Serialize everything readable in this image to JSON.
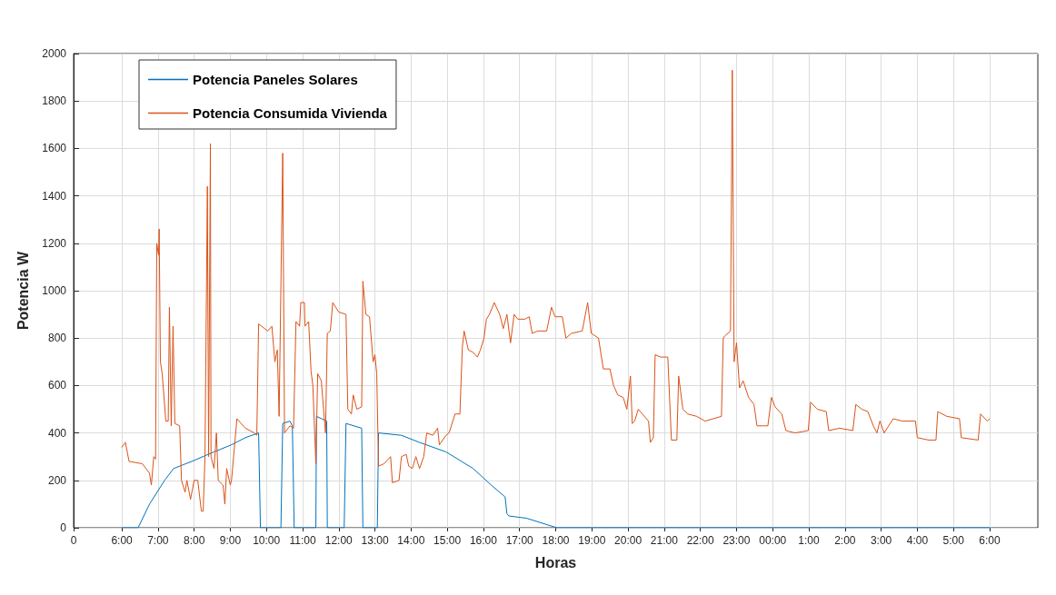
{
  "chart_data": {
    "type": "line",
    "xlabel": "Horas",
    "ylabel": "Potencia W",
    "xlim": [
      "--01-01T04:40",
      "--01-02T07:20"
    ],
    "xticks": [
      {
        "value": "--01-01T04:40",
        "label": "0"
      },
      {
        "value": "--01-01T06:00",
        "label": "6:00"
      },
      {
        "value": "--01-01T07:00",
        "label": "7:00"
      },
      {
        "value": "--01-01T08:00",
        "label": "8:00"
      },
      {
        "value": "--01-01T09:00",
        "label": "9:00"
      },
      {
        "value": "--01-01T10:00",
        "label": "10:00"
      },
      {
        "value": "--01-01T11:00",
        "label": "11:00"
      },
      {
        "value": "--01-01T12:00",
        "label": "12:00"
      },
      {
        "value": "--01-01T13:00",
        "label": "13:00"
      },
      {
        "value": "--01-01T14:00",
        "label": "14:00"
      },
      {
        "value": "--01-01T15:00",
        "label": "15:00"
      },
      {
        "value": "--01-01T16:00",
        "label": "16:00"
      },
      {
        "value": "--01-01T17:00",
        "label": "17:00"
      },
      {
        "value": "--01-01T18:00",
        "label": "18:00"
      },
      {
        "value": "--01-01T19:00",
        "label": "19:00"
      },
      {
        "value": "--01-01T20:00",
        "label": "20:00"
      },
      {
        "value": "--01-01T21:00",
        "label": "21:00"
      },
      {
        "value": "--01-01T22:00",
        "label": "22:00"
      },
      {
        "value": "--01-01T23:00",
        "label": "23:00"
      },
      {
        "value": "--01-02T00:00",
        "label": "00:00"
      },
      {
        "value": "--01-02T01:00",
        "label": "1:00"
      },
      {
        "value": "--01-02T02:00",
        "label": "2:00"
      },
      {
        "value": "--01-02T03:00",
        "label": "3:00"
      },
      {
        "value": "--01-02T04:00",
        "label": "4:00"
      },
      {
        "value": "--01-02T05:00",
        "label": "5:00"
      },
      {
        "value": "--01-02T06:00",
        "label": "6:00"
      }
    ],
    "ylim": [
      0,
      2000
    ],
    "yticks": [
      0,
      200,
      400,
      600,
      800,
      1000,
      1200,
      1400,
      1600,
      1800,
      2000
    ],
    "grid": true,
    "legend": "top left",
    "series": [
      {
        "name": "Potencia Paneles Solares",
        "color": "#0072bd",
        "x": [
          "--01-01T06:00",
          "--01-01T06:27",
          "--01-01T06:46",
          "--01-01T07:11",
          "--01-01T07:26",
          "--01-01T07:56",
          "--01-01T08:33",
          "--01-01T09:02",
          "--01-01T09:25",
          "--01-01T09:47",
          "--01-01T09:50",
          "--01-01T10:24",
          "--01-01T10:27",
          "--01-01T10:39",
          "--01-01T10:43",
          "--01-01T10:46",
          "--01-01T11:16",
          "--01-01T11:22",
          "--01-01T11:23",
          "--01-01T11:40",
          "--01-01T11:41",
          "--01-01T12:09",
          "--01-01T12:12",
          "--01-01T12:38",
          "--01-01T12:40",
          "--01-01T13:04",
          "--01-01T13:06",
          "--01-01T13:44",
          "--01-01T14:14",
          "--01-01T14:58",
          "--01-01T15:43",
          "--01-01T16:13",
          "--01-01T16:36",
          "--01-01T16:39",
          "--01-01T16:42",
          "--01-01T17:12",
          "--01-01T18:02",
          "--01-02T06:00"
        ],
        "values": [
          0,
          0,
          100,
          200,
          250,
          280,
          320,
          350,
          380,
          400,
          0,
          0,
          440,
          450,
          430,
          0,
          0,
          0,
          470,
          450,
          0,
          0,
          440,
          420,
          0,
          0,
          400,
          390,
          360,
          320,
          250,
          180,
          130,
          60,
          50,
          40,
          0,
          0
        ]
      },
      {
        "name": "Potencia Consumida Vivienda",
        "color": "#d95319",
        "x": [
          "--01-01T06:00",
          "--01-01T06:06",
          "--01-01T06:12",
          "--01-01T06:34",
          "--01-01T06:46",
          "--01-01T06:49",
          "--01-01T06:53",
          "--01-01T06:56",
          "--01-01T06:58",
          "--01-01T07:01",
          "--01-01T07:02",
          "--01-01T07:04",
          "--01-01T07:07",
          "--01-01T07:13",
          "--01-01T07:17",
          "--01-01T07:19",
          "--01-01T07:22",
          "--01-01T07:25",
          "--01-01T07:28",
          "--01-01T07:36",
          "--01-01T07:39",
          "--01-01T07:45",
          "--01-01T07:48",
          "--01-01T07:54",
          "--01-01T08:00",
          "--01-01T08:06",
          "--01-01T08:12",
          "--01-01T08:15",
          "--01-01T08:18",
          "--01-01T08:22",
          "--01-01T08:24",
          "--01-01T08:27",
          "--01-01T08:28",
          "--01-01T08:33",
          "--01-01T08:37",
          "--01-01T08:40",
          "--01-01T08:48",
          "--01-01T08:51",
          "--01-01T08:54",
          "--01-01T09:00",
          "--01-01T09:02",
          "--01-01T09:11",
          "--01-01T09:25",
          "--01-01T09:40",
          "--01-01T09:44",
          "--01-01T09:47",
          "--01-01T10:02",
          "--01-01T10:09",
          "--01-01T10:14",
          "--01-01T10:18",
          "--01-01T10:21",
          "--01-01T10:27",
          "--01-01T10:30",
          "--01-01T10:39",
          "--01-01T10:45",
          "--01-01T10:49",
          "--01-01T10:55",
          "--01-01T10:57",
          "--01-01T11:03",
          "--01-01T11:04",
          "--01-01T11:10",
          "--01-01T11:14",
          "--01-01T11:17",
          "--01-01T11:22",
          "--01-01T11:25",
          "--01-01T11:31",
          "--01-01T11:38",
          "--01-01T11:41",
          "--01-01T11:46",
          "--01-01T11:50",
          "--01-01T12:00",
          "--01-01T12:12",
          "--01-01T12:15",
          "--01-01T12:21",
          "--01-01T12:24",
          "--01-01T12:30",
          "--01-01T12:38",
          "--01-01T12:40",
          "--01-01T12:45",
          "--01-01T12:51",
          "--01-01T12:57",
          "--01-01T13:00",
          "--01-01T13:03",
          "--01-01T13:06",
          "--01-01T13:15",
          "--01-01T13:26",
          "--01-01T13:29",
          "--01-01T13:40",
          "--01-01T13:44",
          "--01-01T13:52",
          "--01-01T13:56",
          "--01-01T14:02",
          "--01-01T14:08",
          "--01-01T14:14",
          "--01-01T14:21",
          "--01-01T14:26",
          "--01-01T14:36",
          "--01-01T14:44",
          "--01-01T14:47",
          "--01-01T14:58",
          "--01-01T15:03",
          "--01-01T15:13",
          "--01-01T15:21",
          "--01-01T15:25",
          "--01-01T15:28",
          "--01-01T15:35",
          "--01-01T15:43",
          "--01-01T15:50",
          "--01-01T15:55",
          "--01-01T16:01",
          "--01-01T16:05",
          "--01-01T16:10",
          "--01-01T16:18",
          "--01-01T16:27",
          "--01-01T16:33",
          "--01-01T16:39",
          "--01-01T16:45",
          "--01-01T16:51",
          "--01-01T16:57",
          "--01-01T17:09",
          "--01-01T17:16",
          "--01-01T17:21",
          "--01-01T17:30",
          "--01-01T17:45",
          "--01-01T17:53",
          "--01-01T17:59",
          "--01-01T18:11",
          "--01-01T18:17",
          "--01-01T18:26",
          "--01-01T18:44",
          "--01-01T18:53",
          "--01-01T18:59",
          "--01-01T19:11",
          "--01-01T19:19",
          "--01-01T19:30",
          "--01-01T19:36",
          "--01-01T19:43",
          "--01-01T19:52",
          "--01-01T19:58",
          "--01-01T20:04",
          "--01-01T20:07",
          "--01-01T20:11",
          "--01-01T20:17",
          "--01-01T20:34",
          "--01-01T20:37",
          "--01-01T20:42",
          "--01-01T20:45",
          "--01-01T20:54",
          "--01-01T21:06",
          "--01-01T21:12",
          "--01-01T21:21",
          "--01-01T21:24",
          "--01-01T21:31",
          "--01-01T21:39",
          "--01-01T21:54",
          "--01-01T22:08",
          "--01-01T22:35",
          "--01-01T22:38",
          "--01-01T22:41",
          "--01-01T22:50",
          "--01-01T22:53",
          "--01-01T22:56",
          "--01-01T23:00",
          "--01-01T23:05",
          "--01-01T23:11",
          "--01-01T23:20",
          "--01-01T23:29",
          "--01-01T23:34",
          "--01-01T23:45",
          "--01-01T23:52",
          "--01-01T23:58",
          "--01-02T00:04",
          "--01-02T00:15",
          "--01-02T00:22",
          "--01-02T00:37",
          "--01-02T00:59",
          "--01-02T01:03",
          "--01-02T01:14",
          "--01-02T01:29",
          "--01-02T01:33",
          "--01-02T01:51",
          "--01-02T02:13",
          "--01-02T02:18",
          "--01-02T02:28",
          "--01-02T02:38",
          "--01-02T02:47",
          "--01-02T02:53",
          "--01-02T02:58",
          "--01-02T03:05",
          "--01-02T03:20",
          "--01-02T03:35",
          "--01-02T03:57",
          "--01-02T04:00",
          "--01-02T04:19",
          "--01-02T04:31",
          "--01-02T04:34",
          "--01-02T04:49",
          "--01-02T05:10",
          "--01-02T05:13",
          "--01-02T05:41",
          "--01-02T05:45",
          "--01-02T05:56",
          "--01-02T06:00"
        ],
        "values": [
          340,
          360,
          280,
          270,
          230,
          180,
          300,
          290,
          1200,
          1150,
          1260,
          700,
          650,
          450,
          450,
          930,
          430,
          850,
          440,
          430,
          200,
          150,
          200,
          120,
          200,
          200,
          70,
          70,
          300,
          1440,
          300,
          1620,
          300,
          250,
          400,
          200,
          180,
          100,
          250,
          180,
          200,
          460,
          420,
          400,
          390,
          860,
          830,
          850,
          700,
          750,
          470,
          1580,
          400,
          430,
          420,
          870,
          850,
          950,
          950,
          850,
          870,
          660,
          600,
          270,
          650,
          620,
          400,
          820,
          830,
          950,
          910,
          900,
          500,
          480,
          560,
          500,
          510,
          1040,
          900,
          890,
          700,
          730,
          650,
          260,
          270,
          300,
          190,
          200,
          300,
          310,
          260,
          250,
          300,
          250,
          300,
          400,
          390,
          420,
          350,
          390,
          400,
          480,
          480,
          760,
          830,
          750,
          740,
          720,
          750,
          800,
          880,
          900,
          950,
          900,
          840,
          900,
          780,
          900,
          880,
          880,
          890,
          820,
          830,
          830,
          930,
          890,
          890,
          800,
          820,
          830,
          950,
          820,
          800,
          670,
          670,
          600,
          560,
          550,
          500,
          640,
          440,
          450,
          500,
          450,
          360,
          380,
          730,
          720,
          720,
          370,
          370,
          640,
          500,
          480,
          470,
          450,
          470,
          800,
          810,
          830,
          1930,
          700,
          780,
          590,
          620,
          550,
          520,
          430,
          430,
          430,
          550,
          510,
          480,
          410,
          400,
          410,
          530,
          500,
          490,
          410,
          420,
          410,
          520,
          500,
          490,
          430,
          400,
          450,
          400,
          460,
          450,
          450,
          380,
          370,
          370,
          490,
          470,
          460,
          380,
          370,
          480,
          450,
          460
        ]
      }
    ]
  }
}
